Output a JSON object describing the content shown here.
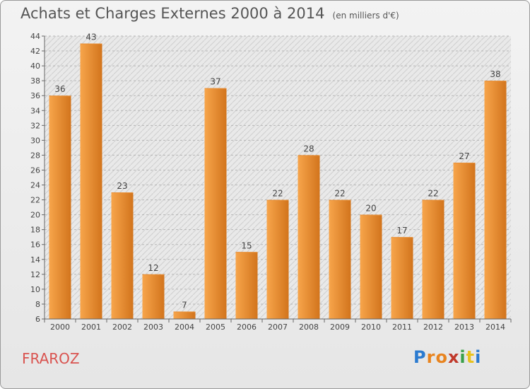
{
  "title": "Achats et Charges Externes 2000 à 2014",
  "subtitle": "(en milliers d'€)",
  "commune": "FRAROZ",
  "logo": {
    "letters": [
      "P",
      "r",
      "o",
      "x",
      "i",
      "t",
      "i"
    ],
    "colors": [
      "#2b7bd0",
      "#e8841f",
      "#e8841f",
      "#c0392b",
      "#3aa04a",
      "#e8c21f",
      "#2b7bd0"
    ]
  },
  "colors": {
    "bar_light": "#f7a54b",
    "bar_dark": "#d2741c",
    "axis": "#666666",
    "grid": "#b5b5b5",
    "text": "#444444"
  },
  "chart_data": {
    "type": "bar",
    "categories": [
      "2000",
      "2001",
      "2002",
      "2003",
      "2004",
      "2005",
      "2006",
      "2007",
      "2008",
      "2009",
      "2010",
      "2011",
      "2012",
      "2013",
      "2014"
    ],
    "values": [
      36,
      43,
      23,
      12,
      7,
      37,
      15,
      22,
      28,
      22,
      20,
      17,
      22,
      27,
      38
    ],
    "ylim": [
      6,
      44
    ],
    "yticks": [
      6,
      8,
      10,
      12,
      14,
      16,
      18,
      20,
      22,
      24,
      26,
      28,
      30,
      32,
      34,
      36,
      38,
      40,
      42,
      44
    ],
    "grid": true,
    "data_labels": true
  }
}
